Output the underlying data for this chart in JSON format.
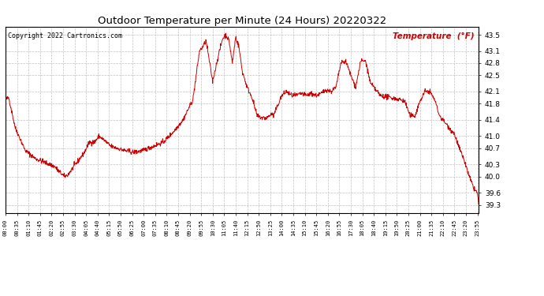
{
  "title": "Outdoor Temperature per Minute (24 Hours) 20220322",
  "copyright_text": "Copyright 2022 Cartronics.com",
  "legend_text": "Temperature  (°F)",
  "ylim": [
    39.1,
    43.7
  ],
  "yticks": [
    39.3,
    39.6,
    40.0,
    40.3,
    40.7,
    41.0,
    41.4,
    41.8,
    42.1,
    42.5,
    42.8,
    43.1,
    43.5
  ],
  "line_color": "#cc0000",
  "bg_color": "#ffffff",
  "grid_color": "#bbbbbb",
  "title_color": "#000000",
  "copyright_color": "#000000",
  "legend_color": "#cc0000",
  "tick_interval_minutes": 35,
  "total_minutes": 1439,
  "keypoints_t": [
    0,
    10,
    30,
    60,
    90,
    120,
    150,
    160,
    180,
    190,
    240,
    255,
    270,
    285,
    300,
    320,
    340,
    360,
    390,
    420,
    450,
    480,
    510,
    540,
    570,
    590,
    600,
    610,
    630,
    645,
    660,
    670,
    680,
    690,
    700,
    710,
    720,
    735,
    750,
    765,
    780,
    795,
    810,
    815,
    840,
    855,
    870,
    885,
    900,
    915,
    930,
    945,
    960,
    975,
    990,
    1005,
    1020,
    1035,
    1050,
    1065,
    1080,
    1095,
    1110,
    1140,
    1200,
    1215,
    1230,
    1245,
    1260,
    1275,
    1290,
    1305,
    1320,
    1335,
    1350,
    1365,
    1380,
    1395,
    1410,
    1425,
    1435,
    1439
  ],
  "keypoints_v": [
    41.9,
    41.95,
    41.2,
    40.65,
    40.45,
    40.35,
    40.25,
    40.15,
    40.0,
    40.05,
    40.6,
    40.85,
    40.85,
    41.0,
    40.9,
    40.75,
    40.7,
    40.65,
    40.6,
    40.65,
    40.75,
    40.85,
    41.1,
    41.4,
    41.9,
    43.1,
    43.2,
    43.35,
    42.35,
    42.9,
    43.4,
    43.5,
    43.35,
    42.8,
    43.45,
    43.2,
    42.6,
    42.2,
    41.95,
    41.5,
    41.45,
    41.45,
    41.55,
    41.5,
    42.0,
    42.1,
    42.0,
    42.0,
    42.05,
    42.0,
    42.05,
    42.0,
    42.05,
    42.15,
    42.1,
    42.2,
    42.8,
    42.85,
    42.5,
    42.2,
    42.85,
    42.85,
    42.3,
    42.0,
    41.9,
    41.85,
    41.5,
    41.5,
    41.85,
    42.1,
    42.1,
    41.9,
    41.5,
    41.35,
    41.2,
    41.05,
    40.7,
    40.4,
    40.0,
    39.7,
    39.6,
    39.3
  ]
}
